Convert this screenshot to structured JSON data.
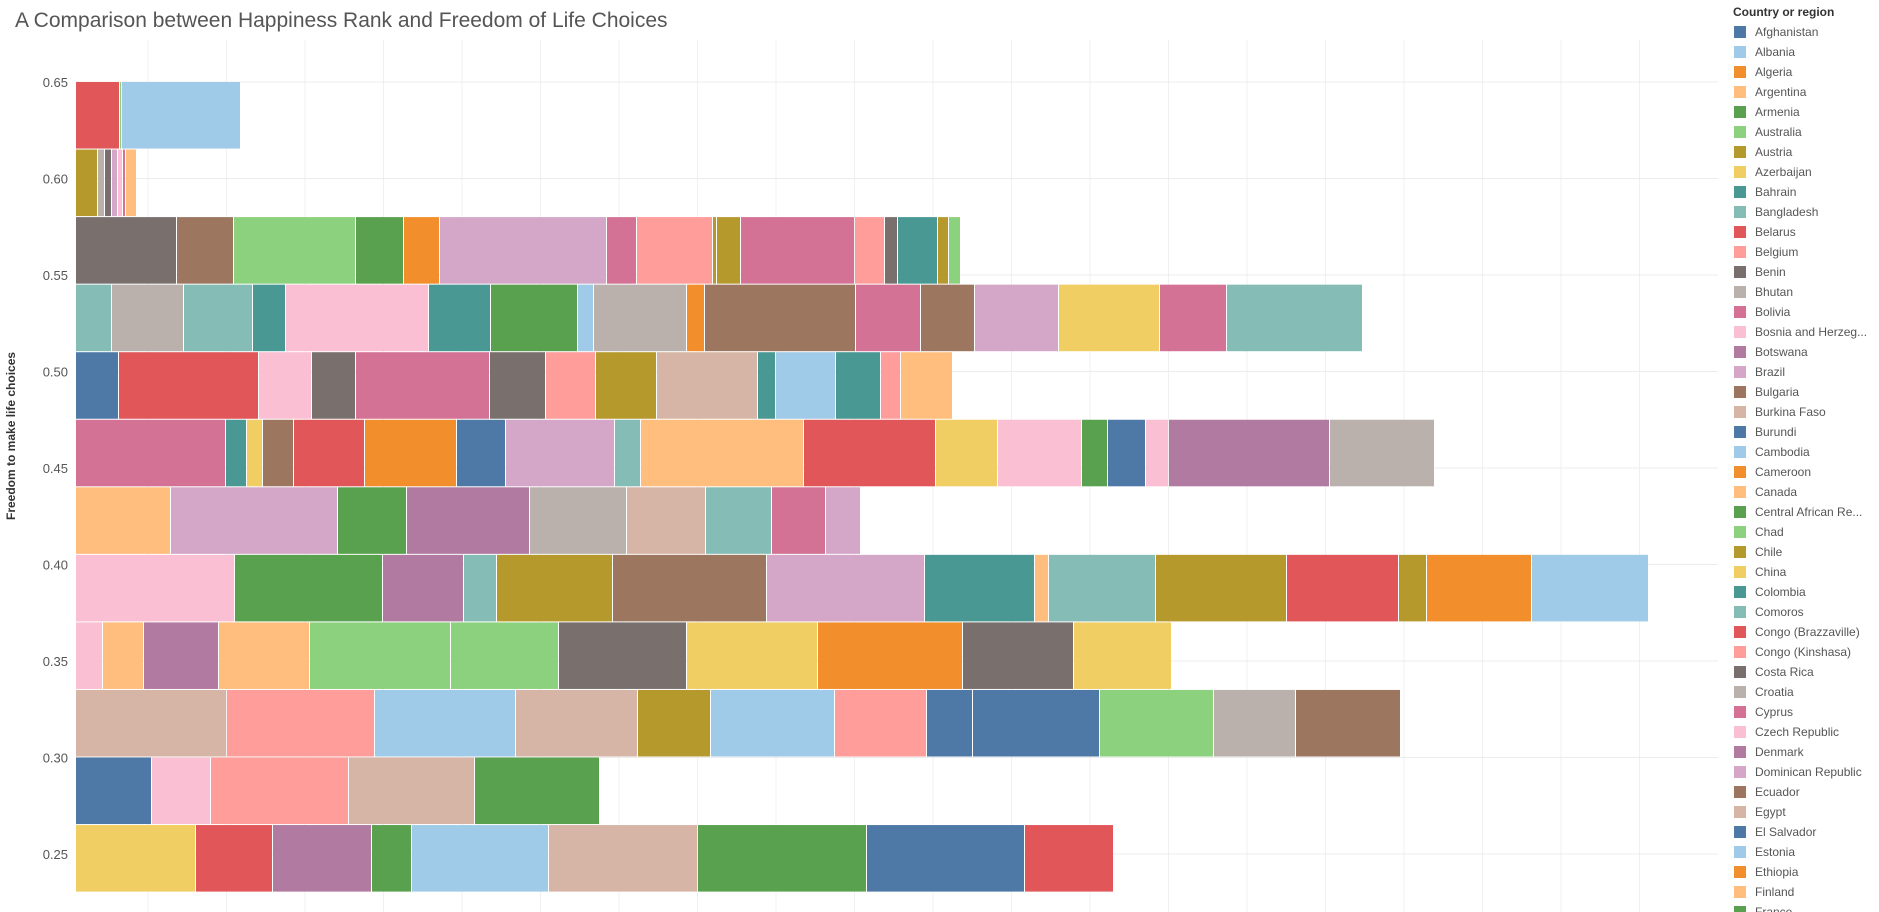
{
  "chart_data": {
    "type": "bar",
    "orientation": "horizontal-stacked",
    "title": "A Comparison between Happiness Rank and  Freedom of Life Choices",
    "ylabel": "Freedom to make life choices",
    "xlabel": "",
    "ylim": [
      0.22,
      0.67
    ],
    "yticks": [
      "0.65",
      "0.60",
      "0.55",
      "0.50",
      "0.45",
      "0.40",
      "0.35",
      "0.30",
      "0.25"
    ],
    "grid": true,
    "legend_position": "right",
    "bin_width": 0.035,
    "rows": [
      {
        "y": 0.6325,
        "segments": [
          {
            "color": "#E15759",
            "value": 44
          },
          {
            "color": "#8CD17D",
            "value": 2
          },
          {
            "color": "#A0CBE8",
            "value": 119
          }
        ]
      },
      {
        "y": 0.5975,
        "segments": [
          {
            "color": "#B6992D",
            "value": 22
          },
          {
            "color": "#BAB0AC",
            "value": 7
          },
          {
            "color": "#79706E",
            "value": 7
          },
          {
            "color": "#D4A6C8",
            "value": 6
          },
          {
            "color": "#FABFD2",
            "value": 5
          },
          {
            "color": "#D37295",
            "value": 3
          },
          {
            "color": "#FFBE7D",
            "value": 11
          }
        ]
      },
      {
        "y": 0.5625,
        "segments": [
          {
            "color": "#79706E",
            "value": 101
          },
          {
            "color": "#9D7660",
            "value": 57
          },
          {
            "color": "#8CD17D",
            "value": 122
          },
          {
            "color": "#59A14F",
            "value": 48
          },
          {
            "color": "#F28E2B",
            "value": 36
          },
          {
            "color": "#D4A6C8",
            "value": 167
          },
          {
            "color": "#D37295",
            "value": 30
          },
          {
            "color": "#FF9D9A",
            "value": 76
          },
          {
            "color": "#B6992D",
            "value": 4
          },
          {
            "color": "#B6992D",
            "value": 24
          },
          {
            "color": "#D37295",
            "value": 114
          },
          {
            "color": "#FF9D9A",
            "value": 30
          },
          {
            "color": "#79706E",
            "value": 13
          },
          {
            "color": "#499894",
            "value": 40
          },
          {
            "color": "#B6992D",
            "value": 11
          },
          {
            "color": "#8CD17D",
            "value": 12
          }
        ]
      },
      {
        "y": 0.5275,
        "segments": [
          {
            "color": "#86BCB6",
            "value": 36
          },
          {
            "color": "#BAB0AC",
            "value": 72
          },
          {
            "color": "#86BCB6",
            "value": 69
          },
          {
            "color": "#499894",
            "value": 33
          },
          {
            "color": "#FABFD2",
            "value": 143
          },
          {
            "color": "#499894",
            "value": 62
          },
          {
            "color": "#59A14F",
            "value": 87
          },
          {
            "color": "#A0CBE8",
            "value": 16
          },
          {
            "color": "#BAB0AC",
            "value": 93
          },
          {
            "color": "#F28E2B",
            "value": 18
          },
          {
            "color": "#9D7660",
            "value": 151
          },
          {
            "color": "#D37295",
            "value": 65
          },
          {
            "color": "#9D7660",
            "value": 54
          },
          {
            "color": "#D4A6C8",
            "value": 84
          },
          {
            "color": "#F1CE63",
            "value": 101
          },
          {
            "color": "#D37295",
            "value": 67
          },
          {
            "color": "#86BCB6",
            "value": 136
          }
        ]
      },
      {
        "y": 0.4925,
        "segments": [
          {
            "color": "#4E79A7",
            "value": 43
          },
          {
            "color": "#E15759",
            "value": 140
          },
          {
            "color": "#FABFD2",
            "value": 53
          },
          {
            "color": "#79706E",
            "value": 44
          },
          {
            "color": "#D37295",
            "value": 134
          },
          {
            "color": "#79706E",
            "value": 56
          },
          {
            "color": "#FF9D9A",
            "value": 50
          },
          {
            "color": "#B6992D",
            "value": 61
          },
          {
            "color": "#D7B5A6",
            "value": 101
          },
          {
            "color": "#499894",
            "value": 18
          },
          {
            "color": "#A0CBE8",
            "value": 60
          },
          {
            "color": "#499894",
            "value": 45
          },
          {
            "color": "#FF9D9A",
            "value": 20
          },
          {
            "color": "#FFBE7D",
            "value": 52
          }
        ]
      },
      {
        "y": 0.4575,
        "segments": [
          {
            "color": "#D37295",
            "value": 150
          },
          {
            "color": "#499894",
            "value": 21
          },
          {
            "color": "#F1CE63",
            "value": 16
          },
          {
            "color": "#9D7660",
            "value": 31
          },
          {
            "color": "#E15759",
            "value": 71
          },
          {
            "color": "#F28E2B",
            "value": 92
          },
          {
            "color": "#4E79A7",
            "value": 49
          },
          {
            "color": "#D4A6C8",
            "value": 109
          },
          {
            "color": "#86BCB6",
            "value": 26
          },
          {
            "color": "#FFBE7D",
            "value": 163
          },
          {
            "color": "#E15759",
            "value": 132
          },
          {
            "color": "#F1CE63",
            "value": 62
          },
          {
            "color": "#FABFD2",
            "value": 84
          },
          {
            "color": "#59A14F",
            "value": 26
          },
          {
            "color": "#4E79A7",
            "value": 38
          },
          {
            "color": "#FABFD2",
            "value": 23
          },
          {
            "color": "#B07AA1",
            "value": 161
          },
          {
            "color": "#BAB0AC",
            "value": 105
          }
        ]
      },
      {
        "y": 0.4225,
        "segments": [
          {
            "color": "#FFBE7D",
            "value": 95
          },
          {
            "color": "#D4A6C8",
            "value": 167
          },
          {
            "color": "#59A14F",
            "value": 69
          },
          {
            "color": "#B07AA1",
            "value": 123
          },
          {
            "color": "#BAB0AC",
            "value": 97
          },
          {
            "color": "#D7B5A6",
            "value": 79
          },
          {
            "color": "#86BCB6",
            "value": 66
          },
          {
            "color": "#D37295",
            "value": 54
          },
          {
            "color": "#D4A6C8",
            "value": 35
          }
        ]
      },
      {
        "y": 0.3875,
        "segments": [
          {
            "color": "#FABFD2",
            "value": 159
          },
          {
            "color": "#59A14F",
            "value": 148
          },
          {
            "color": "#B07AA1",
            "value": 81
          },
          {
            "color": "#86BCB6",
            "value": 33
          },
          {
            "color": "#B6992D",
            "value": 116
          },
          {
            "color": "#9D7660",
            "value": 154
          },
          {
            "color": "#D4A6C8",
            "value": 158
          },
          {
            "color": "#499894",
            "value": 110
          },
          {
            "color": "#FFBE7D",
            "value": 14
          },
          {
            "color": "#86BCB6",
            "value": 107
          },
          {
            "color": "#B6992D",
            "value": 131
          },
          {
            "color": "#E15759",
            "value": 112
          },
          {
            "color": "#B6992D",
            "value": 28
          },
          {
            "color": "#F28E2B",
            "value": 105
          },
          {
            "color": "#A0CBE8",
            "value": 117
          }
        ]
      },
      {
        "y": 0.3525,
        "segments": [
          {
            "color": "#FABFD2",
            "value": 27
          },
          {
            "color": "#FFBE7D",
            "value": 41
          },
          {
            "color": "#B07AA1",
            "value": 75
          },
          {
            "color": "#FFBE7D",
            "value": 91
          },
          {
            "color": "#8CD17D",
            "value": 141
          },
          {
            "color": "#8CD17D",
            "value": 108
          },
          {
            "color": "#79706E",
            "value": 128
          },
          {
            "color": "#F1CE63",
            "value": 131
          },
          {
            "color": "#F28E2B",
            "value": 145
          },
          {
            "color": "#79706E",
            "value": 111
          },
          {
            "color": "#F1CE63",
            "value": 98
          }
        ]
      },
      {
        "y": 0.3175,
        "segments": [
          {
            "color": "#D7B5A6",
            "value": 151
          },
          {
            "color": "#FF9D9A",
            "value": 148
          },
          {
            "color": "#A0CBE8",
            "value": 141
          },
          {
            "color": "#D7B5A6",
            "value": 122
          },
          {
            "color": "#B6992D",
            "value": 73
          },
          {
            "color": "#A0CBE8",
            "value": 124
          },
          {
            "color": "#FF9D9A",
            "value": 92
          },
          {
            "color": "#4E79A7",
            "value": 46
          },
          {
            "color": "#4E79A7",
            "value": 127
          },
          {
            "color": "#8CD17D",
            "value": 114
          },
          {
            "color": "#BAB0AC",
            "value": 82
          },
          {
            "color": "#9D7660",
            "value": 105
          }
        ]
      },
      {
        "y": 0.2825,
        "segments": [
          {
            "color": "#4E79A7",
            "value": 76
          },
          {
            "color": "#FABFD2",
            "value": 59
          },
          {
            "color": "#FF9D9A",
            "value": 138
          },
          {
            "color": "#D7B5A6",
            "value": 126
          },
          {
            "color": "#59A14F",
            "value": 125
          }
        ]
      },
      {
        "y": 0.2475,
        "segments": [
          {
            "color": "#F1CE63",
            "value": 120
          },
          {
            "color": "#E15759",
            "value": 77
          },
          {
            "color": "#B07AA1",
            "value": 99
          },
          {
            "color": "#59A14F",
            "value": 40
          },
          {
            "color": "#A0CBE8",
            "value": 137
          },
          {
            "color": "#D7B5A6",
            "value": 149
          },
          {
            "color": "#59A14F",
            "value": 169
          },
          {
            "color": "#4E79A7",
            "value": 158
          },
          {
            "color": "#E15759",
            "value": 89
          }
        ]
      }
    ],
    "legend": {
      "title": "Country or region",
      "entries": [
        {
          "label": "Afghanistan",
          "color": "#4E79A7"
        },
        {
          "label": "Albania",
          "color": "#A0CBE8"
        },
        {
          "label": "Algeria",
          "color": "#F28E2B"
        },
        {
          "label": "Argentina",
          "color": "#FFBE7D"
        },
        {
          "label": "Armenia",
          "color": "#59A14F"
        },
        {
          "label": "Australia",
          "color": "#8CD17D"
        },
        {
          "label": "Austria",
          "color": "#B6992D"
        },
        {
          "label": "Azerbaijan",
          "color": "#F1CE63"
        },
        {
          "label": "Bahrain",
          "color": "#499894"
        },
        {
          "label": "Bangladesh",
          "color": "#86BCB6"
        },
        {
          "label": "Belarus",
          "color": "#E15759"
        },
        {
          "label": "Belgium",
          "color": "#FF9D9A"
        },
        {
          "label": "Benin",
          "color": "#79706E"
        },
        {
          "label": "Bhutan",
          "color": "#BAB0AC"
        },
        {
          "label": "Bolivia",
          "color": "#D37295"
        },
        {
          "label": "Bosnia and Herzeg...",
          "color": "#FABFD2"
        },
        {
          "label": "Botswana",
          "color": "#B07AA1"
        },
        {
          "label": "Brazil",
          "color": "#D4A6C8"
        },
        {
          "label": "Bulgaria",
          "color": "#9D7660"
        },
        {
          "label": "Burkina Faso",
          "color": "#D7B5A6"
        },
        {
          "label": "Burundi",
          "color": "#4E79A7"
        },
        {
          "label": "Cambodia",
          "color": "#A0CBE8"
        },
        {
          "label": "Cameroon",
          "color": "#F28E2B"
        },
        {
          "label": "Canada",
          "color": "#FFBE7D"
        },
        {
          "label": "Central African Re...",
          "color": "#59A14F"
        },
        {
          "label": "Chad",
          "color": "#8CD17D"
        },
        {
          "label": "Chile",
          "color": "#B6992D"
        },
        {
          "label": "China",
          "color": "#F1CE63"
        },
        {
          "label": "Colombia",
          "color": "#499894"
        },
        {
          "label": "Comoros",
          "color": "#86BCB6"
        },
        {
          "label": "Congo (Brazzaville)",
          "color": "#E15759"
        },
        {
          "label": "Congo (Kinshasa)",
          "color": "#FF9D9A"
        },
        {
          "label": "Costa Rica",
          "color": "#79706E"
        },
        {
          "label": "Croatia",
          "color": "#BAB0AC"
        },
        {
          "label": "Cyprus",
          "color": "#D37295"
        },
        {
          "label": "Czech Republic",
          "color": "#FABFD2"
        },
        {
          "label": "Denmark",
          "color": "#B07AA1"
        },
        {
          "label": "Dominican Republic",
          "color": "#D4A6C8"
        },
        {
          "label": "Ecuador",
          "color": "#9D7660"
        },
        {
          "label": "Egypt",
          "color": "#D7B5A6"
        },
        {
          "label": "El Salvador",
          "color": "#4E79A7"
        },
        {
          "label": "Estonia",
          "color": "#A0CBE8"
        },
        {
          "label": "Ethiopia",
          "color": "#F28E2B"
        },
        {
          "label": "Finland",
          "color": "#FFBE7D"
        },
        {
          "label": "France",
          "color": "#59A14F"
        }
      ]
    }
  }
}
